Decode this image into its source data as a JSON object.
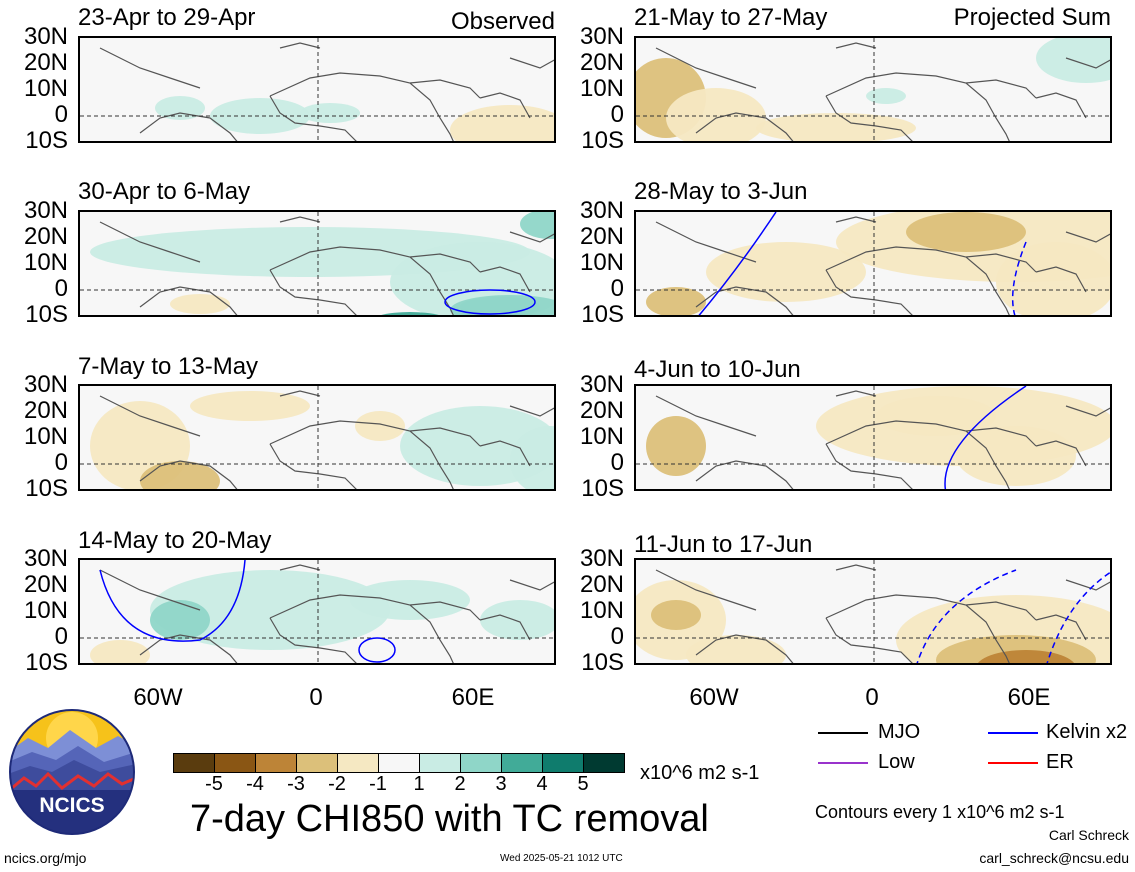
{
  "panels_observed": {
    "header_label": "Observed",
    "titles": [
      "23-Apr to 29-Apr",
      "30-Apr to 6-May",
      "7-May to 13-May",
      "14-May to 20-May"
    ]
  },
  "panels_projected": {
    "header_label": "Projected Sum",
    "titles": [
      "21-May to 27-May",
      "28-May to 3-Jun",
      "4-Jun to 10-Jun",
      "11-Jun to 17-Jun"
    ]
  },
  "axes": {
    "lat_ticks": [
      "30N",
      "20N",
      "10N",
      "0",
      "10S"
    ],
    "lon_ticks": [
      "60W",
      "0",
      "60E"
    ]
  },
  "colorbar": {
    "tick_labels": [
      "-5",
      "-4",
      "-3",
      "-2",
      "-1",
      "1",
      "2",
      "3",
      "4",
      "5"
    ],
    "colors": [
      "#5a3c0e",
      "#8a5614",
      "#bd8437",
      "#dcc07a",
      "#f5e8c2",
      "#f7f7f7",
      "#c9ece4",
      "#8fd6c8",
      "#41ab98",
      "#0f7c6d",
      "#003a31"
    ],
    "units": "x10^6 m2 s-1"
  },
  "main_title": "7-day CHI850 with TC removal",
  "legend": {
    "items": [
      {
        "label": "MJO",
        "color": "#000000"
      },
      {
        "label": "Kelvin x2",
        "color": "#0000ff"
      },
      {
        "label": "Low",
        "color": "#9933cc"
      },
      {
        "label": "ER",
        "color": "#ff0000"
      }
    ],
    "contour_note": "Contours every 1 x10^6 m2 s-1"
  },
  "logo_text": "NCICS",
  "footer": {
    "left": "ncics.org/mjo",
    "center": "Wed 2025-05-21 1012 UTC",
    "author": "Carl Schreck",
    "email": "carl_schreck@ncsu.edu"
  }
}
